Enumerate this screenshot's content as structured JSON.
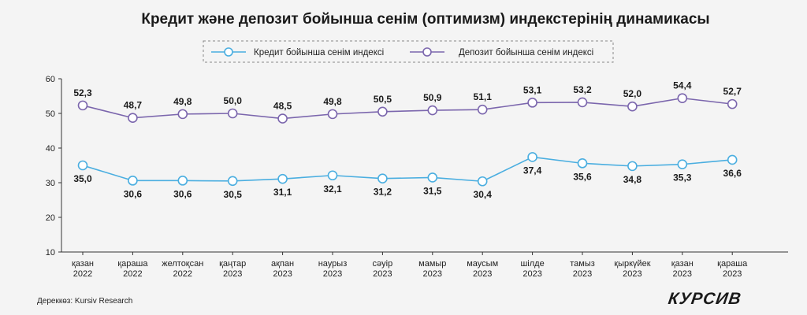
{
  "chart_data": {
    "type": "line",
    "title": "Кредит және депозит бойынша сенім (оптимизм) индекстерінің динамикасы",
    "categories": [
      [
        "қазан",
        "2022"
      ],
      [
        "қараша",
        "2022"
      ],
      [
        "желтоқсан",
        "2022"
      ],
      [
        "қаңтар",
        "2023"
      ],
      [
        "ақпан",
        "2023"
      ],
      [
        "наурыз",
        "2023"
      ],
      [
        "сәуір",
        "2023"
      ],
      [
        "мамыр",
        "2023"
      ],
      [
        "маусым",
        "2023"
      ],
      [
        "шілде",
        "2023"
      ],
      [
        "тамыз",
        "2023"
      ],
      [
        "қыркүйек",
        "2023"
      ],
      [
        "қазан",
        "2023"
      ],
      [
        "қараша",
        "2023"
      ]
    ],
    "series": [
      {
        "name": "Кредит бойынша сенім индексі",
        "color": "#4aaee0",
        "values": [
          35.0,
          30.6,
          30.6,
          30.5,
          31.1,
          32.1,
          31.2,
          31.5,
          30.4,
          37.4,
          35.6,
          34.8,
          35.3,
          36.6
        ],
        "labels": [
          "35,0",
          "30,6",
          "30,6",
          "30,5",
          "31,1",
          "32,1",
          "31,2",
          "31,5",
          "30,4",
          "37,4",
          "35,6",
          "34,8",
          "35,3",
          "36,6"
        ],
        "label_position": "below"
      },
      {
        "name": "Депозит бойынша сенім индексі",
        "color": "#7b66ad",
        "values": [
          52.3,
          48.7,
          49.8,
          50.0,
          48.5,
          49.8,
          50.5,
          50.9,
          51.1,
          53.1,
          53.2,
          52.0,
          54.4,
          52.7
        ],
        "labels": [
          "52,3",
          "48,7",
          "49,8",
          "50,0",
          "48,5",
          "49,8",
          "50,5",
          "50,9",
          "51,1",
          "53,1",
          "53,2",
          "52,0",
          "54,4",
          "52,7"
        ],
        "label_position": "above"
      }
    ],
    "yticks": [
      10,
      20,
      30,
      40,
      50,
      60
    ],
    "ylim": [
      10,
      60
    ],
    "grid": false,
    "legend": "top-center, dashed box"
  },
  "source": "Дереккөз: Kursiv Research",
  "logo": "КУРСИВ"
}
